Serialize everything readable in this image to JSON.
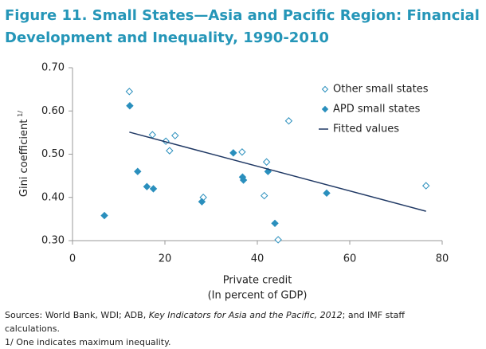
{
  "chart_data": {
    "type": "scatter",
    "title": [
      "Figure 11. Small States—Asia and Pacific Region: Financial",
      "Development and Inequality, 1990-2010"
    ],
    "y_label": "Gini coefficient",
    "y_label_note": "1/",
    "x_label": [
      "Private credit",
      "(In percent of GDP)"
    ],
    "xlim": [
      0,
      80
    ],
    "ylim": [
      0.3,
      0.7
    ],
    "xticks": [
      0,
      20,
      40,
      60,
      80
    ],
    "yticks": [
      {
        "value": 0.3,
        "label": "0.30"
      },
      {
        "value": 0.4,
        "label": "0.40"
      },
      {
        "value": 0.5,
        "label": "0.50"
      },
      {
        "value": 0.6,
        "label": "0.60"
      },
      {
        "value": 0.7,
        "label": "0.70"
      }
    ],
    "legend": "upper right",
    "series": [
      {
        "name": "Other small states",
        "color": "#2a8fbd",
        "marker": "open-diamond",
        "x": [
          12.3,
          17.3,
          20.2,
          21,
          22.2,
          28.3,
          36.7,
          42,
          41.5,
          44.5,
          46.8,
          76.5
        ],
        "values": [
          0.645,
          0.545,
          0.53,
          0.508,
          0.543,
          0.4,
          0.505,
          0.482,
          0.404,
          0.302,
          0.577,
          0.427
        ]
      },
      {
        "name": "APD small states",
        "color": "#2a8fbd",
        "marker": "diamond",
        "x": [
          12.4,
          14.1,
          16.1,
          17.5,
          6.9,
          28,
          34.8,
          36.8,
          37,
          42.3,
          43.8,
          55
        ],
        "values": [
          0.612,
          0.46,
          0.425,
          0.42,
          0.358,
          0.39,
          0.503,
          0.447,
          0.44,
          0.46,
          0.34,
          0.41
        ]
      },
      {
        "name": "Fitted values",
        "color": "#1f3864",
        "marker": "line",
        "x": [
          12.3,
          76.5
        ],
        "values": [
          0.551,
          0.368
        ]
      }
    ],
    "notes": {
      "source_prefix": "Sources: World Bank, WDI; ADB, ",
      "source_italic": "Key Indicators for Asia and the Pacific, 2012",
      "source_suffix": "; and IMF staff",
      "source_line2": "calculations.",
      "footnote": "1/ One indicates maximum inequality."
    }
  }
}
